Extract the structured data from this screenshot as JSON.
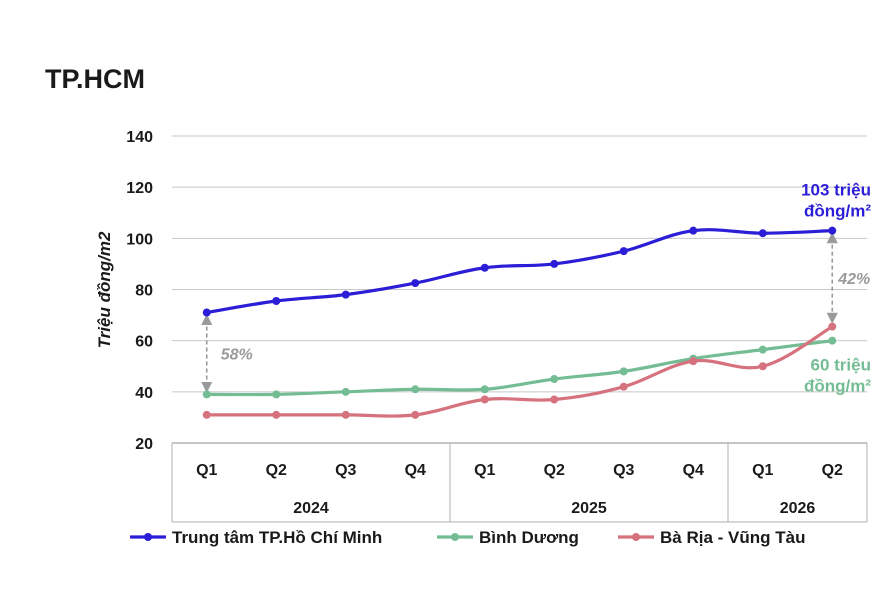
{
  "chart_data": {
    "type": "line",
    "title": "TP.HCM",
    "ylabel": "Triệu đồng/m2",
    "ylim": [
      20,
      140
    ],
    "yticks": [
      20,
      40,
      60,
      80,
      100,
      120,
      140
    ],
    "grid": true,
    "legend_position": "bottom",
    "categories": [
      "Q1",
      "Q2",
      "Q3",
      "Q4",
      "Q1",
      "Q2",
      "Q3",
      "Q4",
      "Q1",
      "Q2"
    ],
    "years": [
      {
        "label": "2024",
        "count": 4
      },
      {
        "label": "2025",
        "count": 4
      },
      {
        "label": "2026",
        "count": 2
      }
    ],
    "series": [
      {
        "name": "Trung tâm TP.Hồ Chí Minh",
        "color": "#2b1ed6",
        "values": [
          71,
          75.5,
          78,
          82.5,
          88.5,
          90,
          95,
          103,
          102,
          103
        ]
      },
      {
        "name": "Bình Dương",
        "color": "#74bd94",
        "values": [
          39,
          39,
          40,
          41,
          41,
          45,
          48,
          53,
          56.5,
          60
        ]
      },
      {
        "name": "Bà Rịa - Vũng Tàu",
        "color": "#d5727e",
        "values": [
          31,
          31,
          31,
          31,
          37,
          37,
          42,
          52,
          50,
          65.5
        ]
      }
    ],
    "annotations": [
      {
        "lines": [
          "103 triệu",
          "đồng/m²"
        ],
        "color": "#2b1ed6",
        "series": 0,
        "index": 9
      },
      {
        "lines": [
          "60 triệu",
          "đồng/m²"
        ],
        "color": "#74bd94",
        "series": 1,
        "index": 9
      }
    ],
    "gaps": [
      {
        "label": "58%",
        "index": 0,
        "from": 71,
        "to": 39
      },
      {
        "label": "42%",
        "index": 9,
        "from": 103,
        "to": 66
      }
    ]
  }
}
